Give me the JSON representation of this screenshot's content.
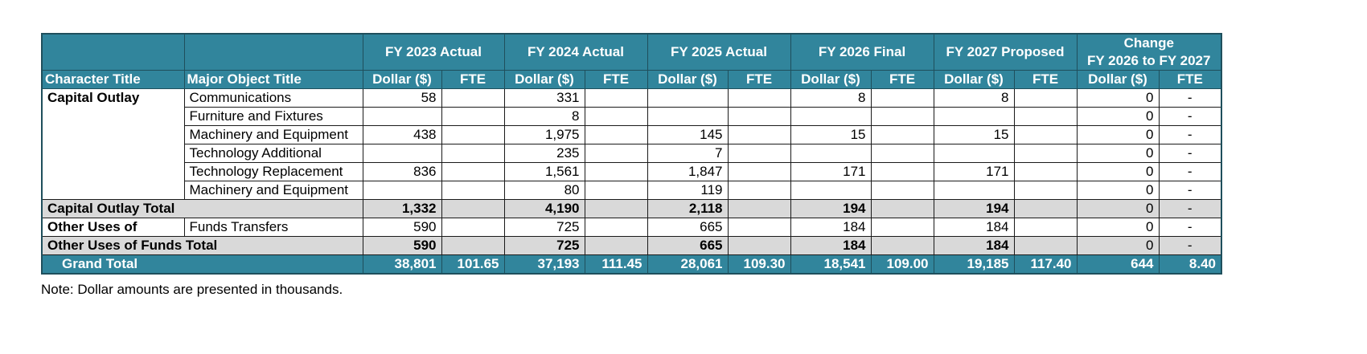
{
  "header": {
    "years": [
      "FY 2023 Actual",
      "FY 2024 Actual",
      "FY 2025 Actual",
      "FY 2026 Final",
      "FY 2027 Proposed"
    ],
    "change_line1": "Change",
    "change_line2": "FY 2026 to FY 2027",
    "character_title": "Character Title",
    "major_object_title": "Major Object Title",
    "dollar": "Dollar ($)",
    "fte": "FTE"
  },
  "rows": [
    {
      "char": "Capital Outlay",
      "obj": "Communications",
      "v": [
        "58",
        "",
        "331",
        "",
        "",
        "",
        "8",
        "",
        "8",
        "",
        "0",
        "-"
      ]
    },
    {
      "char": "",
      "obj": "Furniture and Fixtures",
      "v": [
        "",
        "",
        "8",
        "",
        "",
        "",
        "",
        "",
        "",
        "",
        "0",
        "-"
      ]
    },
    {
      "char": "",
      "obj": "Machinery and Equipment",
      "v": [
        "438",
        "",
        "1,975",
        "",
        "145",
        "",
        "15",
        "",
        "15",
        "",
        "0",
        "-"
      ]
    },
    {
      "char": "",
      "obj": "Technology Additional",
      "v": [
        "",
        "",
        "235",
        "",
        "7",
        "",
        "",
        "",
        "",
        "",
        "0",
        "-"
      ]
    },
    {
      "char": "",
      "obj": "Technology Replacement",
      "v": [
        "836",
        "",
        "1,561",
        "",
        "1,847",
        "",
        "171",
        "",
        "171",
        "",
        "0",
        "-"
      ]
    },
    {
      "char": "",
      "obj": "Machinery and Equipment",
      "v": [
        "",
        "",
        "80",
        "",
        "119",
        "",
        "",
        "",
        "",
        "",
        "0",
        "-"
      ]
    }
  ],
  "capital_outlay_total": {
    "label": "Capital Outlay Total",
    "v": [
      "1,332",
      "",
      "4,190",
      "",
      "2,118",
      "",
      "194",
      "",
      "194",
      "",
      "0",
      "-"
    ]
  },
  "other_uses_row": {
    "char": "Other Uses of",
    "obj": "Funds Transfers",
    "v": [
      "590",
      "",
      "725",
      "",
      "665",
      "",
      "184",
      "",
      "184",
      "",
      "0",
      "-"
    ]
  },
  "other_uses_total": {
    "label": "Other Uses of Funds Total",
    "v": [
      "590",
      "",
      "725",
      "",
      "665",
      "",
      "184",
      "",
      "184",
      "",
      "0",
      "-"
    ]
  },
  "grand_total": {
    "label": "Grand Total",
    "v": [
      "38,801",
      "101.65",
      "37,193",
      "111.45",
      "28,061",
      "109.30",
      "18,541",
      "109.00",
      "19,185",
      "117.40",
      "644",
      "8.40"
    ]
  },
  "note": "Note: Dollar amounts are presented in thousands.",
  "colors": {
    "header_bg": "#31859c",
    "total_bg": "#d9d9d9"
  }
}
